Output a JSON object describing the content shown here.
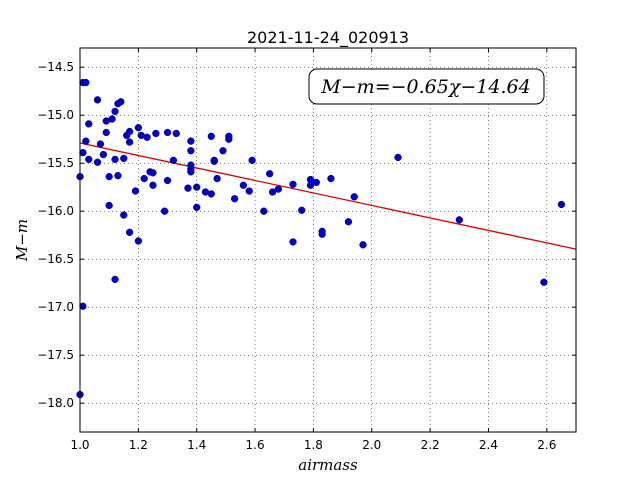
{
  "chart_data": {
    "type": "scatter",
    "title": "2021-11-24_020913",
    "xlabel": "airmass",
    "ylabel": "M−m",
    "xlim": [
      1.0,
      2.7
    ],
    "ylim": [
      -18.3,
      -14.3
    ],
    "y_inverted": true,
    "grid": true,
    "x_ticks": [
      1.0,
      1.2,
      1.4,
      1.6,
      1.8,
      2.0,
      2.2,
      2.4,
      2.6
    ],
    "x_tick_labels": [
      "1.0",
      "1.2",
      "1.4",
      "1.6",
      "1.8",
      "2.0",
      "2.2",
      "2.4",
      "2.6"
    ],
    "y_ticks": [
      -14.5,
      -15.0,
      -15.5,
      -16.0,
      -16.5,
      -17.0,
      -17.5,
      -18.0
    ],
    "y_tick_labels": [
      "−14.5",
      "−15.0",
      "−15.5",
      "−16.0",
      "−16.5",
      "−17.0",
      "−17.5",
      "−18.0"
    ],
    "annotation": "M−m=−0.65χ−14.64",
    "annotation_position": "top-right",
    "point_color": "#0000cc",
    "fit_color": "#dd0000",
    "fit": {
      "slope": -0.65,
      "intercept": -14.64
    },
    "points": [
      [
        1.0,
        -15.64
      ],
      [
        1.0,
        -17.91
      ],
      [
        1.01,
        -15.39
      ],
      [
        1.01,
        -16.99
      ],
      [
        1.01,
        -14.66
      ],
      [
        1.02,
        -14.66
      ],
      [
        1.02,
        -15.27
      ],
      [
        1.03,
        -15.09
      ],
      [
        1.03,
        -15.46
      ],
      [
        1.06,
        -14.84
      ],
      [
        1.06,
        -15.49
      ],
      [
        1.07,
        -15.3
      ],
      [
        1.08,
        -15.41
      ],
      [
        1.09,
        -15.18
      ],
      [
        1.09,
        -15.06
      ],
      [
        1.1,
        -15.64
      ],
      [
        1.1,
        -15.94
      ],
      [
        1.11,
        -15.04
      ],
      [
        1.12,
        -15.46
      ],
      [
        1.12,
        -14.96
      ],
      [
        1.13,
        -14.88
      ],
      [
        1.13,
        -15.63
      ],
      [
        1.12,
        -16.71
      ],
      [
        1.14,
        -14.86
      ],
      [
        1.15,
        -15.45
      ],
      [
        1.15,
        -16.04
      ],
      [
        1.16,
        -15.21
      ],
      [
        1.17,
        -15.17
      ],
      [
        1.17,
        -15.28
      ],
      [
        1.17,
        -16.22
      ],
      [
        1.19,
        -15.79
      ],
      [
        1.2,
        -16.31
      ],
      [
        1.2,
        -15.13
      ],
      [
        1.21,
        -15.21
      ],
      [
        1.22,
        -15.66
      ],
      [
        1.23,
        -15.23
      ],
      [
        1.24,
        -15.59
      ],
      [
        1.25,
        -15.73
      ],
      [
        1.25,
        -15.6
      ],
      [
        1.26,
        -15.19
      ],
      [
        1.29,
        -16.0
      ],
      [
        1.3,
        -15.68
      ],
      [
        1.3,
        -15.18
      ],
      [
        1.32,
        -15.47
      ],
      [
        1.33,
        -15.19
      ],
      [
        1.37,
        -15.76
      ],
      [
        1.38,
        -15.27
      ],
      [
        1.38,
        -15.37
      ],
      [
        1.38,
        -15.52
      ],
      [
        1.38,
        -15.56
      ],
      [
        1.38,
        -15.59
      ],
      [
        1.4,
        -15.96
      ],
      [
        1.4,
        -15.75
      ],
      [
        1.43,
        -15.8
      ],
      [
        1.45,
        -15.82
      ],
      [
        1.45,
        -15.22
      ],
      [
        1.46,
        -15.48
      ],
      [
        1.46,
        -15.47
      ],
      [
        1.47,
        -15.66
      ],
      [
        1.49,
        -15.37
      ],
      [
        1.51,
        -15.22
      ],
      [
        1.51,
        -15.25
      ],
      [
        1.53,
        -15.87
      ],
      [
        1.56,
        -15.73
      ],
      [
        1.58,
        -15.79
      ],
      [
        1.59,
        -15.47
      ],
      [
        1.63,
        -16.0
      ],
      [
        1.65,
        -15.61
      ],
      [
        1.66,
        -15.8
      ],
      [
        1.68,
        -15.77
      ],
      [
        1.73,
        -16.32
      ],
      [
        1.73,
        -15.72
      ],
      [
        1.76,
        -15.99
      ],
      [
        1.79,
        -15.67
      ],
      [
        1.79,
        -15.73
      ],
      [
        1.81,
        -15.7
      ],
      [
        1.83,
        -16.21
      ],
      [
        1.83,
        -16.24
      ],
      [
        1.86,
        -15.66
      ],
      [
        1.92,
        -16.11
      ],
      [
        1.94,
        -15.85
      ],
      [
        1.97,
        -16.35
      ],
      [
        2.09,
        -15.44
      ],
      [
        2.3,
        -16.09
      ],
      [
        2.59,
        -16.74
      ],
      [
        2.65,
        -15.93
      ]
    ]
  }
}
